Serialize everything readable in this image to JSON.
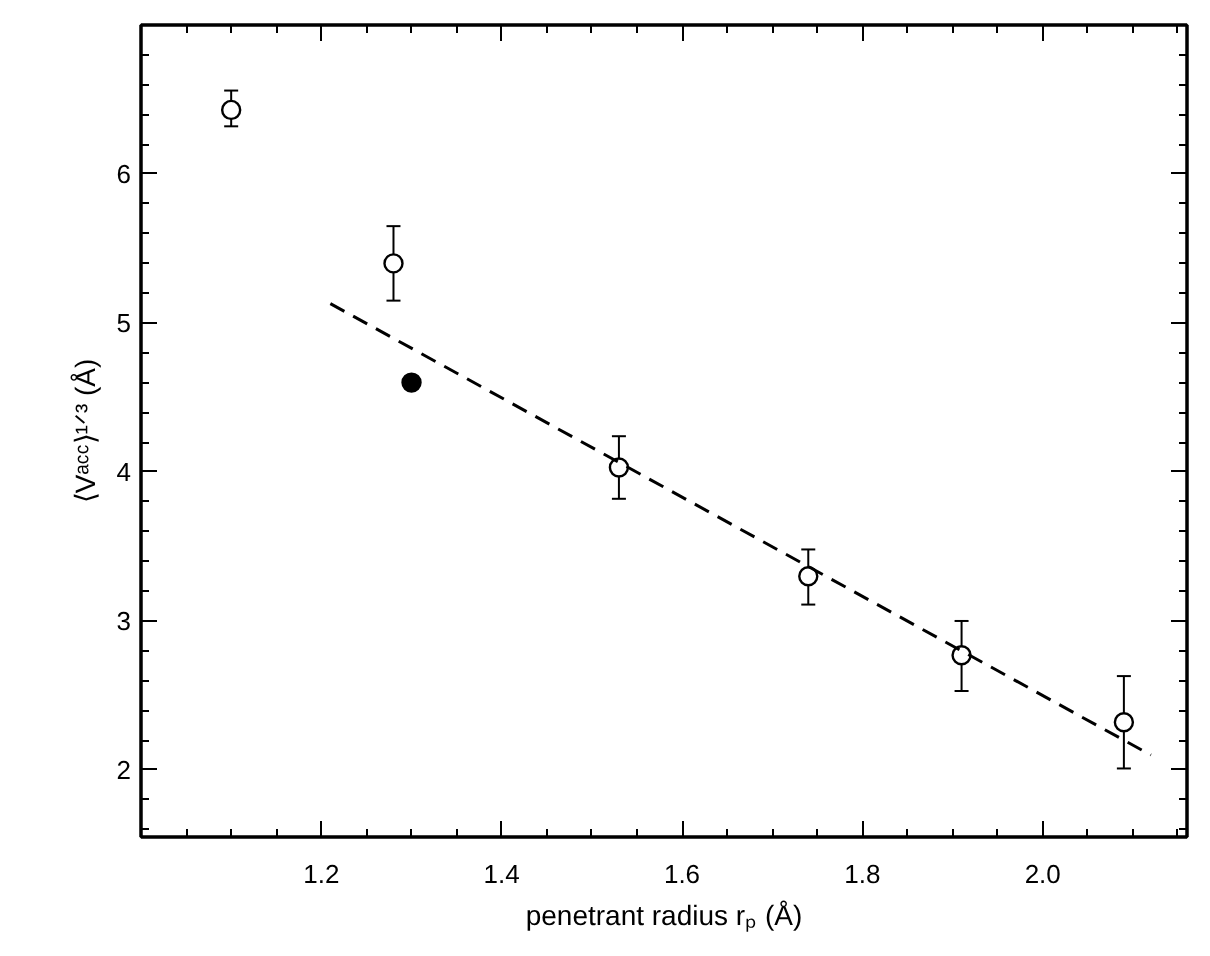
{
  "chart_data": {
    "type": "scatter",
    "xlabel": "penetrant radius rₚ (Å)",
    "ylabel": "⟨Vᵃᶜᶜ⟩¹ᐟ³ (Å)",
    "xlim": [
      1.0,
      2.16
    ],
    "ylim": [
      1.55,
      7.0
    ],
    "xticks": [
      1.2,
      1.4,
      1.6,
      1.8,
      {
        "value": 2.0,
        "label": "2.0"
      }
    ],
    "yticks": [
      2,
      3,
      4,
      5,
      6
    ],
    "series": [
      {
        "marker": "circle",
        "color": "#ffffff",
        "x": [
          1.1,
          1.28,
          1.53,
          1.74,
          1.91,
          2.09
        ],
        "values": [
          6.43,
          5.4,
          4.03,
          3.3,
          2.77,
          2.32
        ],
        "errors": [
          [
            6.32,
            6.56
          ],
          [
            5.15,
            5.65
          ],
          [
            3.82,
            4.24
          ],
          [
            3.11,
            3.48
          ],
          [
            2.53,
            3.0
          ],
          [
            2.01,
            2.63
          ]
        ]
      },
      {
        "marker": "circle",
        "color": "#000000",
        "x": [
          1.3
        ],
        "values": [
          4.6
        ]
      },
      {
        "type": "line",
        "line_style": "dashed",
        "color": "#000000",
        "x": [
          1.21,
          2.12
        ],
        "values": [
          5.13,
          2.1
        ]
      }
    ]
  }
}
